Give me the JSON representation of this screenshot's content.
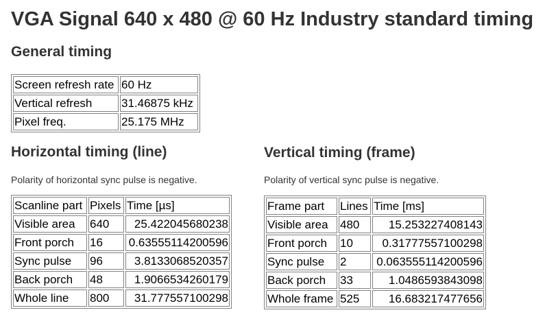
{
  "page": {
    "title": "VGA Signal 640 x 480 @ 60 Hz Industry standard timing"
  },
  "general": {
    "heading": "General timing",
    "rows": [
      {
        "label": "Screen refresh rate",
        "value": "60 Hz"
      },
      {
        "label": "Vertical refresh",
        "value": "31.46875 kHz"
      },
      {
        "label": "Pixel freq.",
        "value": "25.175 MHz"
      }
    ]
  },
  "horizontal": {
    "heading": "Horizontal timing (line)",
    "note": "Polarity of horizontal sync pulse is negative.",
    "columns": [
      "Scanline part",
      "Pixels",
      "Time [µs]"
    ],
    "rows": [
      {
        "part": "Visible area",
        "count": "640",
        "time": "25.422045680238"
      },
      {
        "part": "Front porch",
        "count": "16",
        "time": "0.63555114200596"
      },
      {
        "part": "Sync pulse",
        "count": "96",
        "time": "3.8133068520357"
      },
      {
        "part": "Back porch",
        "count": "48",
        "time": "1.9066534260179"
      },
      {
        "part": "Whole line",
        "count": "800",
        "time": "31.777557100298"
      }
    ]
  },
  "vertical": {
    "heading": "Vertical timing (frame)",
    "note": "Polarity of vertical sync pulse is negative.",
    "columns": [
      "Frame part",
      "Lines",
      "Time [ms]"
    ],
    "rows": [
      {
        "part": "Visible area",
        "count": "480",
        "time": "15.253227408143"
      },
      {
        "part": "Front porch",
        "count": "10",
        "time": "0.31777557100298"
      },
      {
        "part": "Sync pulse",
        "count": "2",
        "time": "0.063555114200596"
      },
      {
        "part": "Back porch",
        "count": "33",
        "time": "1.0486593843098"
      },
      {
        "part": "Whole frame",
        "count": "525",
        "time": "16.683217477656"
      }
    ]
  }
}
